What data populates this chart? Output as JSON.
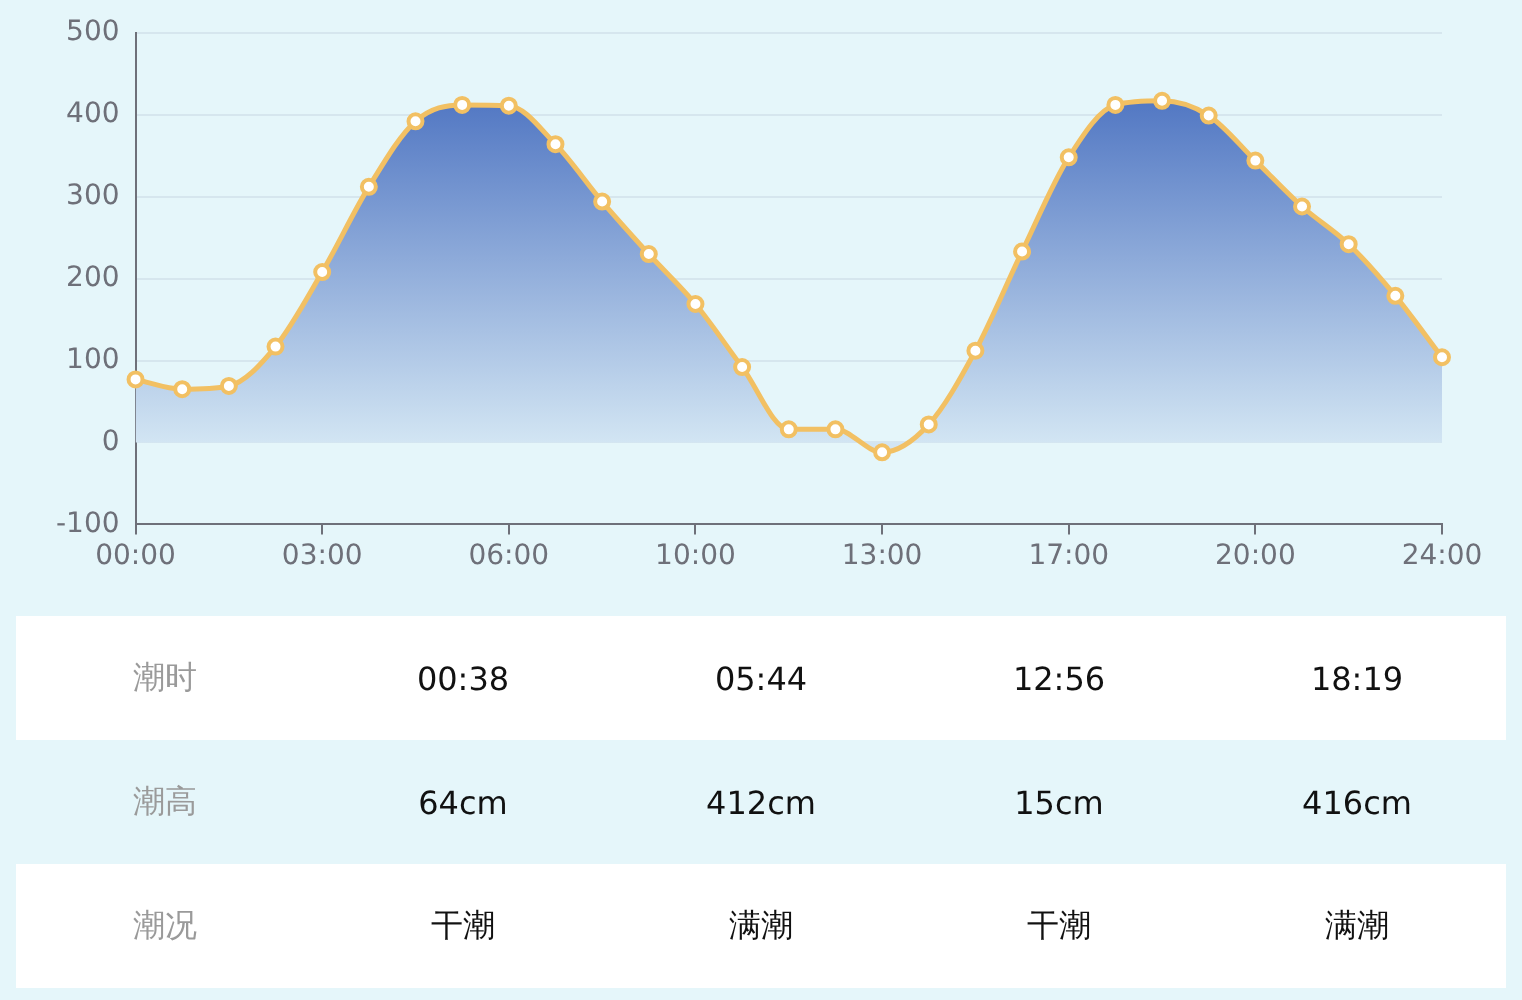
{
  "chart_data": {
    "type": "area",
    "categories": [
      "00:00",
      null,
      null,
      null,
      "03:00",
      null,
      null,
      null,
      "06:00",
      null,
      null,
      null,
      "10:00",
      null,
      null,
      null,
      "13:00",
      null,
      null,
      null,
      "17:00",
      null,
      null,
      null,
      "20:00",
      null,
      null,
      null,
      "24:00"
    ],
    "series": [
      {
        "color": "#f2c063",
        "values": [
          77,
          65,
          69,
          117,
          208,
          312,
          392,
          412,
          411,
          364,
          294,
          230,
          169,
          92,
          16,
          16,
          -12,
          22,
          112,
          233,
          348,
          412,
          417,
          399,
          344,
          288,
          242,
          179,
          104
        ]
      }
    ],
    "ylim": [
      -100,
      500
    ],
    "yticks": [
      -100,
      0,
      100,
      200,
      300,
      400,
      500
    ],
    "grid": "y",
    "legend": false,
    "marker": "circle",
    "line_style": "solid",
    "annotations": [
      "潮时",
      "00:38",
      "05:44",
      "12:56",
      "18:19",
      "潮高",
      "64cm",
      "412cm",
      "15cm",
      "416cm",
      "潮况",
      "干潮",
      "满潮",
      "干潮",
      "满潮"
    ]
  }
}
